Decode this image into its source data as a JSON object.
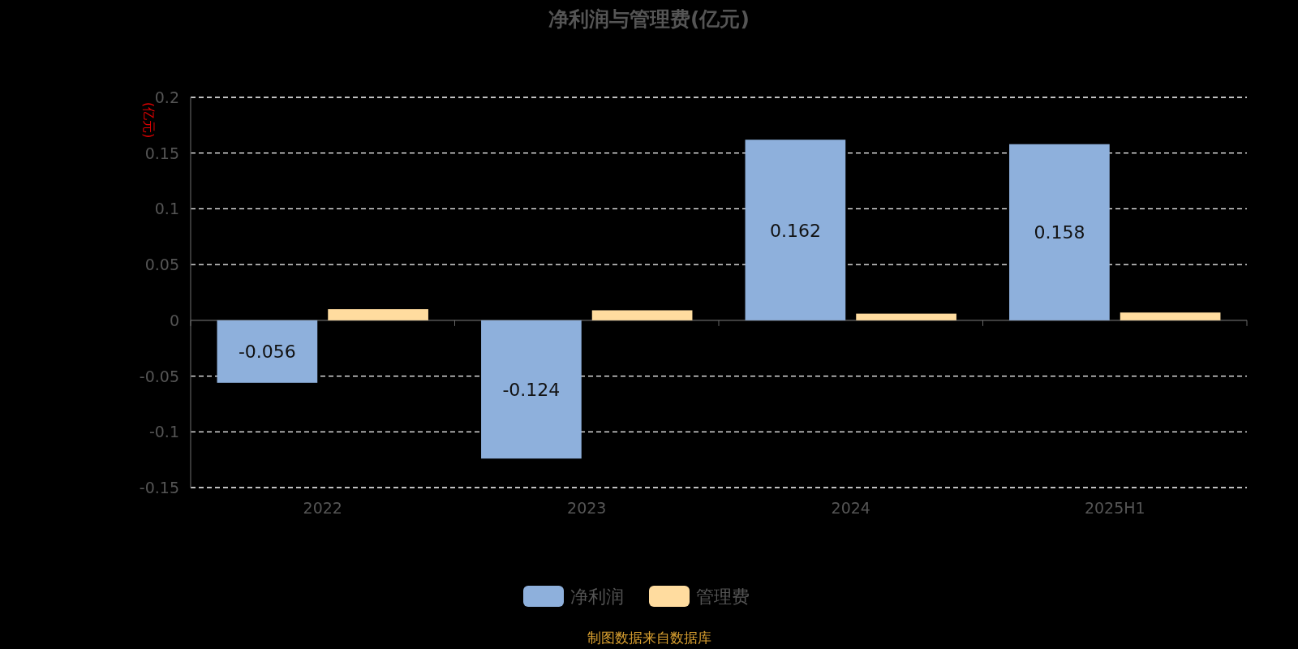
{
  "chart_data": {
    "type": "bar",
    "title": "净利润与管理费(亿元)",
    "ylabel": "(亿元)",
    "categories": [
      "2022",
      "2023",
      "2024",
      "2025H1"
    ],
    "series": [
      {
        "name": "净利润",
        "color": "#8eb0dc",
        "values": [
          -0.056,
          -0.124,
          0.162,
          0.158
        ],
        "value_labels": [
          "-0.056",
          "-0.124",
          "0.162",
          "0.158"
        ]
      },
      {
        "name": "管理费",
        "color": "#ffdc9f",
        "values": [
          0.01,
          0.009,
          0.006,
          0.007
        ]
      }
    ],
    "ylim": [
      -0.15,
      0.2
    ],
    "yticks": [
      -0.15,
      -0.1,
      -0.05,
      0,
      0.05,
      0.1,
      0.15,
      0.2
    ],
    "grid": "y",
    "legend": "bottom",
    "annotations": [
      "制图数据来自数据库"
    ]
  }
}
